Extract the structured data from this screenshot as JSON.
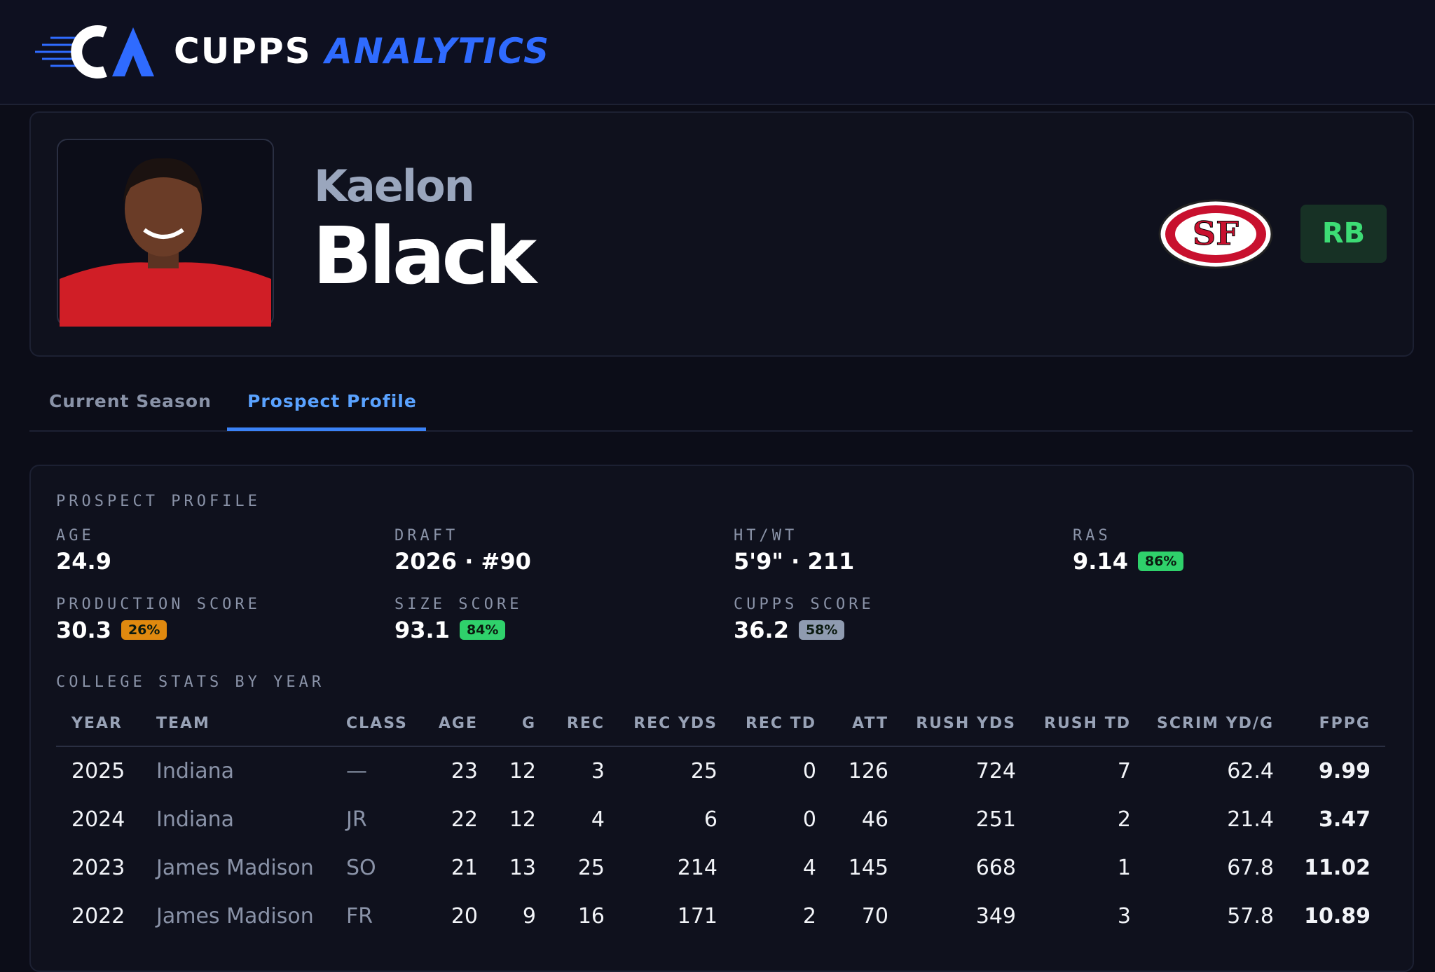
{
  "header": {
    "brand_1": "CUPPS",
    "brand_2": "ANALYTICS"
  },
  "player": {
    "first_name": "Kaelon",
    "last_name": "Black",
    "team_logo": "SF",
    "position": "RB"
  },
  "tabs": [
    "Current Season",
    "Prospect Profile"
  ],
  "profile": {
    "title": "PROSPECT PROFILE",
    "metrics": [
      {
        "label": "AGE",
        "value": "24.9"
      },
      {
        "label": "DRAFT",
        "value": "2026 · #90"
      },
      {
        "label": "HT/WT",
        "value": "5'9\" · 211"
      },
      {
        "label": "RAS",
        "value": "9.14",
        "badge": "86%"
      },
      {
        "label": "PRODUCTION SCORE",
        "value": "30.3",
        "badge": "26%"
      },
      {
        "label": "SIZE SCORE",
        "value": "93.1",
        "badge": "84%"
      },
      {
        "label": "CUPPS SCORE",
        "value": "36.2",
        "badge": "58%"
      }
    ]
  },
  "college": {
    "title": "COLLEGE STATS BY YEAR",
    "columns": [
      "YEAR",
      "TEAM",
      "CLASS",
      "AGE",
      "G",
      "REC",
      "REC YDS",
      "REC TD",
      "ATT",
      "RUSH YDS",
      "RUSH TD",
      "SCRIM YD/G",
      "FPPG"
    ],
    "rows": [
      [
        "2025",
        "Indiana",
        "—",
        "23",
        "12",
        "3",
        "25",
        "0",
        "126",
        "724",
        "7",
        "62.4",
        "9.99"
      ],
      [
        "2024",
        "Indiana",
        "JR",
        "22",
        "12",
        "4",
        "6",
        "0",
        "46",
        "251",
        "2",
        "21.4",
        "3.47"
      ],
      [
        "2023",
        "James Madison",
        "SO",
        "21",
        "13",
        "25",
        "214",
        "4",
        "145",
        "668",
        "1",
        "67.8",
        "11.02"
      ],
      [
        "2022",
        "James Madison",
        "FR",
        "20",
        "9",
        "16",
        "171",
        "2",
        "70",
        "349",
        "3",
        "57.8",
        "10.89"
      ]
    ]
  }
}
